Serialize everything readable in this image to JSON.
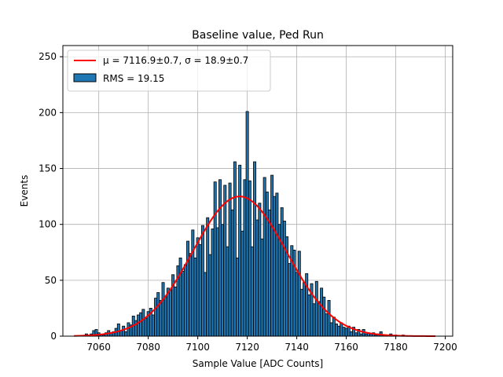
{
  "chart_data": {
    "type": "bar",
    "title": "Baseline value, Ped Run",
    "xlabel": "Sample Value [ADC Counts]",
    "ylabel": "Events",
    "xlim": [
      7045.5,
      7203
    ],
    "ylim": [
      0,
      260
    ],
    "xticks": [
      7060,
      7080,
      7100,
      7120,
      7140,
      7160,
      7180,
      7200
    ],
    "yticks": [
      0,
      50,
      100,
      150,
      200,
      250
    ],
    "grid": true,
    "legend_position": "top-left",
    "bin_width": 1,
    "bars": [
      {
        "x": 7055,
        "y": 2
      },
      {
        "x": 7057,
        "y": 2
      },
      {
        "x": 7058,
        "y": 5
      },
      {
        "x": 7059,
        "y": 6
      },
      {
        "x": 7060,
        "y": 3
      },
      {
        "x": 7061,
        "y": 1
      },
      {
        "x": 7062,
        "y": 1
      },
      {
        "x": 7063,
        "y": 3
      },
      {
        "x": 7064,
        "y": 5
      },
      {
        "x": 7065,
        "y": 3
      },
      {
        "x": 7066,
        "y": 4
      },
      {
        "x": 7067,
        "y": 7
      },
      {
        "x": 7068,
        "y": 11
      },
      {
        "x": 7069,
        "y": 5
      },
      {
        "x": 7070,
        "y": 9
      },
      {
        "x": 7071,
        "y": 4
      },
      {
        "x": 7072,
        "y": 12
      },
      {
        "x": 7073,
        "y": 10
      },
      {
        "x": 7074,
        "y": 18
      },
      {
        "x": 7075,
        "y": 14
      },
      {
        "x": 7076,
        "y": 19
      },
      {
        "x": 7077,
        "y": 21
      },
      {
        "x": 7078,
        "y": 24
      },
      {
        "x": 7079,
        "y": 16
      },
      {
        "x": 7080,
        "y": 22
      },
      {
        "x": 7081,
        "y": 25
      },
      {
        "x": 7082,
        "y": 19
      },
      {
        "x": 7083,
        "y": 34
      },
      {
        "x": 7084,
        "y": 39
      },
      {
        "x": 7085,
        "y": 32
      },
      {
        "x": 7086,
        "y": 48
      },
      {
        "x": 7087,
        "y": 35
      },
      {
        "x": 7088,
        "y": 43
      },
      {
        "x": 7089,
        "y": 41
      },
      {
        "x": 7090,
        "y": 55
      },
      {
        "x": 7091,
        "y": 44
      },
      {
        "x": 7092,
        "y": 63
      },
      {
        "x": 7093,
        "y": 70
      },
      {
        "x": 7094,
        "y": 58
      },
      {
        "x": 7095,
        "y": 64
      },
      {
        "x": 7096,
        "y": 85
      },
      {
        "x": 7097,
        "y": 74
      },
      {
        "x": 7098,
        "y": 95
      },
      {
        "x": 7099,
        "y": 70
      },
      {
        "x": 7100,
        "y": 88
      },
      {
        "x": 7101,
        "y": 82
      },
      {
        "x": 7102,
        "y": 99
      },
      {
        "x": 7103,
        "y": 57
      },
      {
        "x": 7104,
        "y": 106
      },
      {
        "x": 7105,
        "y": 73
      },
      {
        "x": 7106,
        "y": 96
      },
      {
        "x": 7107,
        "y": 138
      },
      {
        "x": 7108,
        "y": 97
      },
      {
        "x": 7109,
        "y": 140
      },
      {
        "x": 7110,
        "y": 100
      },
      {
        "x": 7111,
        "y": 135
      },
      {
        "x": 7112,
        "y": 80
      },
      {
        "x": 7113,
        "y": 137
      },
      {
        "x": 7114,
        "y": 113
      },
      {
        "x": 7115,
        "y": 156
      },
      {
        "x": 7116,
        "y": 70
      },
      {
        "x": 7117,
        "y": 153
      },
      {
        "x": 7118,
        "y": 94
      },
      {
        "x": 7119,
        "y": 140
      },
      {
        "x": 7120,
        "y": 201
      },
      {
        "x": 7121,
        "y": 139
      },
      {
        "x": 7122,
        "y": 80
      },
      {
        "x": 7123,
        "y": 156
      },
      {
        "x": 7124,
        "y": 104
      },
      {
        "x": 7125,
        "y": 119
      },
      {
        "x": 7126,
        "y": 87
      },
      {
        "x": 7127,
        "y": 142
      },
      {
        "x": 7128,
        "y": 129
      },
      {
        "x": 7129,
        "y": 113
      },
      {
        "x": 7130,
        "y": 144
      },
      {
        "x": 7131,
        "y": 125
      },
      {
        "x": 7132,
        "y": 128
      },
      {
        "x": 7133,
        "y": 100
      },
      {
        "x": 7134,
        "y": 115
      },
      {
        "x": 7135,
        "y": 103
      },
      {
        "x": 7136,
        "y": 89
      },
      {
        "x": 7137,
        "y": 65
      },
      {
        "x": 7138,
        "y": 81
      },
      {
        "x": 7139,
        "y": 77
      },
      {
        "x": 7140,
        "y": 57
      },
      {
        "x": 7141,
        "y": 76
      },
      {
        "x": 7142,
        "y": 42
      },
      {
        "x": 7143,
        "y": 48
      },
      {
        "x": 7144,
        "y": 56
      },
      {
        "x": 7145,
        "y": 37
      },
      {
        "x": 7146,
        "y": 47
      },
      {
        "x": 7147,
        "y": 29
      },
      {
        "x": 7148,
        "y": 49
      },
      {
        "x": 7149,
        "y": 31
      },
      {
        "x": 7150,
        "y": 43
      },
      {
        "x": 7151,
        "y": 35
      },
      {
        "x": 7152,
        "y": 20
      },
      {
        "x": 7153,
        "y": 32
      },
      {
        "x": 7154,
        "y": 12
      },
      {
        "x": 7155,
        "y": 17
      },
      {
        "x": 7156,
        "y": 11
      },
      {
        "x": 7157,
        "y": 9
      },
      {
        "x": 7158,
        "y": 12
      },
      {
        "x": 7159,
        "y": 8
      },
      {
        "x": 7160,
        "y": 7
      },
      {
        "x": 7161,
        "y": 9
      },
      {
        "x": 7162,
        "y": 4
      },
      {
        "x": 7163,
        "y": 8
      },
      {
        "x": 7164,
        "y": 3
      },
      {
        "x": 7165,
        "y": 6
      },
      {
        "x": 7166,
        "y": 2
      },
      {
        "x": 7167,
        "y": 6
      },
      {
        "x": 7168,
        "y": 2
      },
      {
        "x": 7169,
        "y": 3
      },
      {
        "x": 7170,
        "y": 2
      },
      {
        "x": 7171,
        "y": 3
      },
      {
        "x": 7172,
        "y": 1
      },
      {
        "x": 7173,
        "y": 2
      },
      {
        "x": 7174,
        "y": 4
      },
      {
        "x": 7175,
        "y": 1
      },
      {
        "x": 7178,
        "y": 2
      },
      {
        "x": 7180,
        "y": 1
      },
      {
        "x": 7183,
        "y": 1
      }
    ],
    "fit": {
      "type": "gaussian",
      "mu": 7116.9,
      "sigma": 18.9,
      "amplitude": 125,
      "x_range": [
        7050,
        7196
      ]
    },
    "legend": [
      {
        "label": "μ = 7116.9±0.7, σ = 18.9±0.7",
        "kind": "line",
        "color": "#ff0000"
      },
      {
        "label": "RMS = 19.15",
        "kind": "patch",
        "color": "#1f77b4"
      }
    ],
    "colors": {
      "bar_fill": "#1f77b4",
      "bar_edge": "#000000",
      "fit_line": "#ff0000",
      "grid": "#b0b0b0"
    }
  }
}
